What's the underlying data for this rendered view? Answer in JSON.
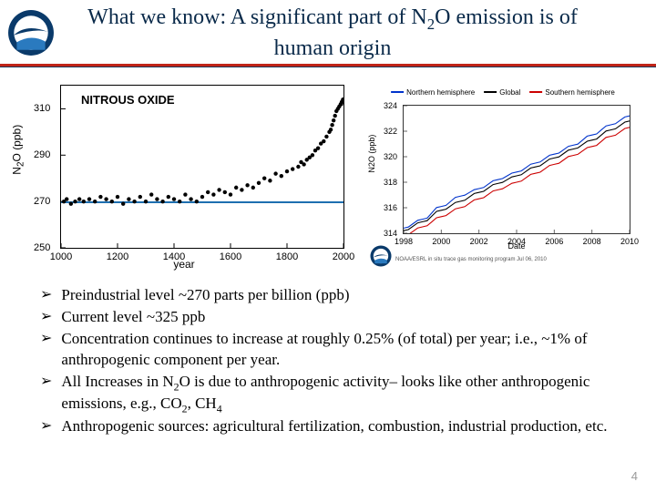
{
  "header": {
    "title_html": "What we know: A significant part of N<sub>2</sub>O emission is of human origin"
  },
  "chart_left": {
    "type": "scatter",
    "title_inside": "NITROUS OXIDE",
    "ylabel_html": "N<sub>2</sub>O (ppb)",
    "xlabel": "year",
    "xlim": [
      1000,
      2000
    ],
    "xtick_step": 200,
    "ylim": [
      250,
      320
    ],
    "ytick_step": 20,
    "ytick_start": 250,
    "baseline_value": 270,
    "baseline_color": "#1e6fb0",
    "marker_color": "#000000",
    "marker_size": 2.2,
    "points": [
      [
        1010,
        270
      ],
      [
        1020,
        271
      ],
      [
        1035,
        269
      ],
      [
        1050,
        270
      ],
      [
        1065,
        271
      ],
      [
        1080,
        270
      ],
      [
        1100,
        271
      ],
      [
        1120,
        270
      ],
      [
        1140,
        272
      ],
      [
        1160,
        271
      ],
      [
        1180,
        270
      ],
      [
        1200,
        272
      ],
      [
        1220,
        269
      ],
      [
        1240,
        271
      ],
      [
        1260,
        270
      ],
      [
        1280,
        272
      ],
      [
        1300,
        270
      ],
      [
        1320,
        273
      ],
      [
        1340,
        271
      ],
      [
        1360,
        270
      ],
      [
        1380,
        272
      ],
      [
        1400,
        271
      ],
      [
        1420,
        270
      ],
      [
        1440,
        273
      ],
      [
        1460,
        271
      ],
      [
        1480,
        270
      ],
      [
        1500,
        272
      ],
      [
        1520,
        274
      ],
      [
        1540,
        273
      ],
      [
        1560,
        275
      ],
      [
        1580,
        274
      ],
      [
        1600,
        273
      ],
      [
        1620,
        276
      ],
      [
        1640,
        275
      ],
      [
        1660,
        277
      ],
      [
        1680,
        276
      ],
      [
        1700,
        278
      ],
      [
        1720,
        280
      ],
      [
        1740,
        279
      ],
      [
        1760,
        282
      ],
      [
        1780,
        281
      ],
      [
        1800,
        283
      ],
      [
        1820,
        284
      ],
      [
        1840,
        285
      ],
      [
        1850,
        287
      ],
      [
        1860,
        286
      ],
      [
        1870,
        288
      ],
      [
        1880,
        289
      ],
      [
        1890,
        290
      ],
      [
        1900,
        292
      ],
      [
        1910,
        293
      ],
      [
        1920,
        295
      ],
      [
        1930,
        296
      ],
      [
        1940,
        298
      ],
      [
        1950,
        300
      ],
      [
        1955,
        301
      ],
      [
        1960,
        303
      ],
      [
        1965,
        305
      ],
      [
        1970,
        307
      ],
      [
        1975,
        309
      ],
      [
        1980,
        310
      ],
      [
        1985,
        311
      ],
      [
        1990,
        312
      ],
      [
        1992,
        312
      ],
      [
        1994,
        313
      ],
      [
        1996,
        313
      ],
      [
        1998,
        314
      ],
      [
        2000,
        314
      ]
    ]
  },
  "chart_right": {
    "type": "line",
    "ylabel": "N2O (ppb)",
    "xlabel": "Date",
    "xlim": [
      1998,
      2010
    ],
    "xtick_step": 2,
    "ylim": [
      314,
      324
    ],
    "ytick_step": 2,
    "legend": [
      {
        "label": "Northern hemisphere",
        "color": "#0033cc"
      },
      {
        "label": "Global",
        "color": "#000000"
      },
      {
        "label": "Southern hemisphere",
        "color": "#cc0000"
      }
    ],
    "attribution": "NOAA/ESRL in situ trace gas monitoring program\nJul 06, 2010",
    "series": {
      "north": [
        [
          1998,
          314.4
        ],
        [
          1999,
          315.1
        ],
        [
          2000,
          316.1
        ],
        [
          2001,
          316.9
        ],
        [
          2002,
          317.5
        ],
        [
          2003,
          318.2
        ],
        [
          2004,
          318.8
        ],
        [
          2005,
          319.5
        ],
        [
          2006,
          320.2
        ],
        [
          2007,
          320.9
        ],
        [
          2008,
          321.7
        ],
        [
          2009,
          322.5
        ],
        [
          2010,
          323.2
        ]
      ],
      "global": [
        [
          1998,
          314.2
        ],
        [
          1999,
          314.9
        ],
        [
          2000,
          315.8
        ],
        [
          2001,
          316.5
        ],
        [
          2002,
          317.2
        ],
        [
          2003,
          317.9
        ],
        [
          2004,
          318.5
        ],
        [
          2005,
          319.2
        ],
        [
          2006,
          319.9
        ],
        [
          2007,
          320.6
        ],
        [
          2008,
          321.3
        ],
        [
          2009,
          322.1
        ],
        [
          2010,
          322.8
        ]
      ],
      "south": [
        [
          1998,
          313.8
        ],
        [
          1999,
          314.5
        ],
        [
          2000,
          315.3
        ],
        [
          2001,
          316.0
        ],
        [
          2002,
          316.7
        ],
        [
          2003,
          317.4
        ],
        [
          2004,
          318.0
        ],
        [
          2005,
          318.7
        ],
        [
          2006,
          319.4
        ],
        [
          2007,
          320.1
        ],
        [
          2008,
          320.8
        ],
        [
          2009,
          321.6
        ],
        [
          2010,
          322.3
        ]
      ]
    },
    "line_width": 1.1
  },
  "bullets": [
    "Preindustrial level ~270 parts per billion (ppb)",
    "Current level ~325 ppb",
    "Concentration continues to increase at roughly 0.25% (of total) per year; i.e., ~1% of anthropogenic component per year.",
    "All Increases in N<sub>2</sub>O is due to anthropogenic activity– looks like other anthropogenic emissions, e.g., CO<sub>2</sub>, CH<sub>4</sub>",
    "Anthropogenic sources: agricultural fertilization, combustion, industrial production, etc."
  ],
  "page_number": "4",
  "colors": {
    "title": "#0a2a4a",
    "rule": "#c02418"
  }
}
